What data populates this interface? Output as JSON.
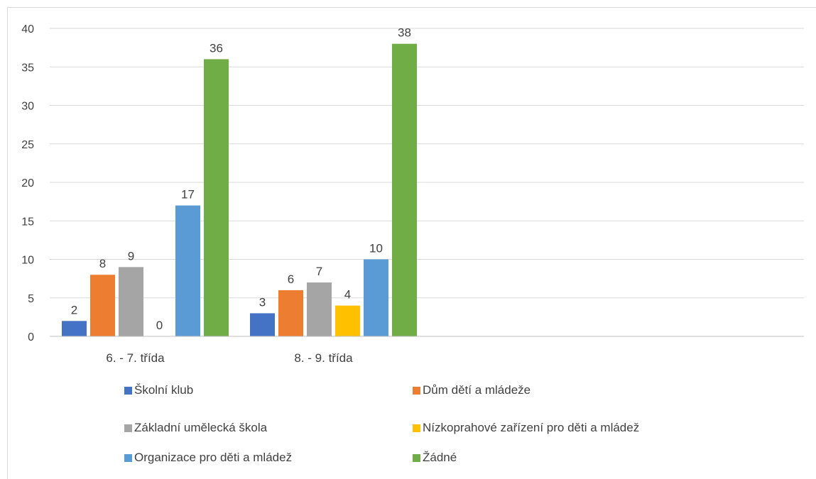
{
  "chart_data": {
    "type": "bar",
    "categories": [
      "6. - 7. třída",
      "8. - 9. třída"
    ],
    "series": [
      {
        "name": "Školní klub",
        "values": [
          2,
          3
        ],
        "color": "#4472c4"
      },
      {
        "name": "Dům dětí a mládeže",
        "values": [
          8,
          6
        ],
        "color": "#ed7d31"
      },
      {
        "name": "Základní umělecká škola",
        "values": [
          9,
          7
        ],
        "color": "#a5a5a5"
      },
      {
        "name": "Nízkoprahové zařízení pro děti a mládež",
        "values": [
          0,
          4
        ],
        "color": "#ffc000"
      },
      {
        "name": "Organizace pro děti a mládež",
        "values": [
          17,
          10
        ],
        "color": "#5b9bd5"
      },
      {
        "name": "Žádné",
        "values": [
          36,
          38
        ],
        "color": "#70ad47"
      }
    ],
    "yticks": [
      "0",
      "5",
      "10",
      "15",
      "20",
      "25",
      "30",
      "35",
      "40"
    ],
    "ylim": [
      0,
      40
    ],
    "grid": true,
    "legend_position": "bottom",
    "title": "",
    "xlabel": "",
    "ylabel": ""
  }
}
